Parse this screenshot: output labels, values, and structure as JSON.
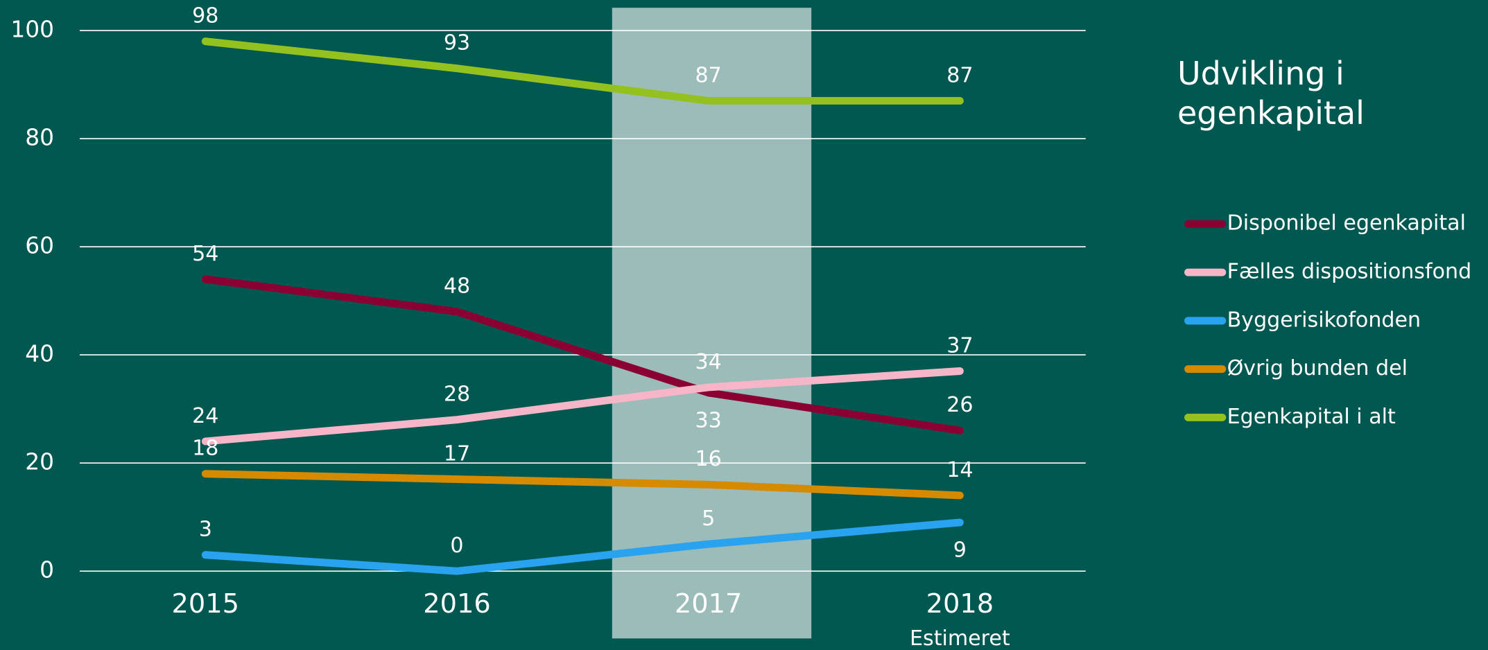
{
  "chart_data": {
    "type": "line",
    "title": "Udvikling i egenkapital",
    "categories": [
      "2015",
      "2016",
      "2017",
      "2018"
    ],
    "x_sublabels": [
      null,
      null,
      null,
      "Estimeret"
    ],
    "series": [
      {
        "name": "Disponibel egenkapital",
        "color": "#8b0033",
        "values": [
          54,
          48,
          33,
          26
        ]
      },
      {
        "name": "Fælles dispositionsfond",
        "color": "#f7b6c8",
        "values": [
          24,
          28,
          34,
          37
        ]
      },
      {
        "name": "Byggerisikofonden",
        "color": "#29a3f0",
        "values": [
          3,
          0,
          5,
          9
        ]
      },
      {
        "name": "Øvrig bunden del",
        "color": "#d68a00",
        "values": [
          18,
          17,
          16,
          14
        ]
      },
      {
        "name": "Egenkapital i alt",
        "color": "#95c11f",
        "values": [
          98,
          93,
          87,
          87
        ]
      }
    ],
    "ylim": [
      0,
      100
    ],
    "yticks": [
      0,
      20,
      40,
      60,
      80,
      100
    ],
    "grid": true,
    "legend": "right"
  }
}
